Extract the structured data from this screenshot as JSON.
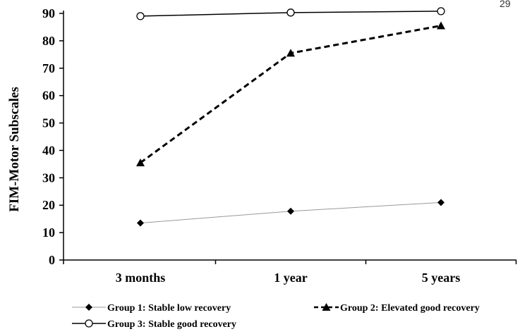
{
  "page_number": "29",
  "chart_data": {
    "type": "line",
    "title": "",
    "xlabel": "",
    "ylabel": "FIM-Motor Subscales",
    "categories": [
      "3 months",
      "1 year",
      "5 years"
    ],
    "ylim": [
      0,
      90
    ],
    "yticks": [
      0,
      10,
      20,
      30,
      40,
      50,
      60,
      70,
      80,
      90
    ],
    "grid": false,
    "legend_position": "bottom",
    "series": [
      {
        "name": "Group 1: Stable low recovery",
        "values": [
          13.5,
          17.8,
          21.0
        ],
        "marker": "diamond",
        "line": "thin-solid",
        "color": "#999999"
      },
      {
        "name": "Group 2: Elevated good recovery",
        "values": [
          35.5,
          75.5,
          85.5
        ],
        "marker": "triangle",
        "line": "dashed",
        "color": "#000000"
      },
      {
        "name": "Group 3: Stable good recovery",
        "values": [
          89.0,
          90.3,
          90.8
        ],
        "marker": "circle-open",
        "line": "solid",
        "color": "#000000"
      }
    ]
  }
}
